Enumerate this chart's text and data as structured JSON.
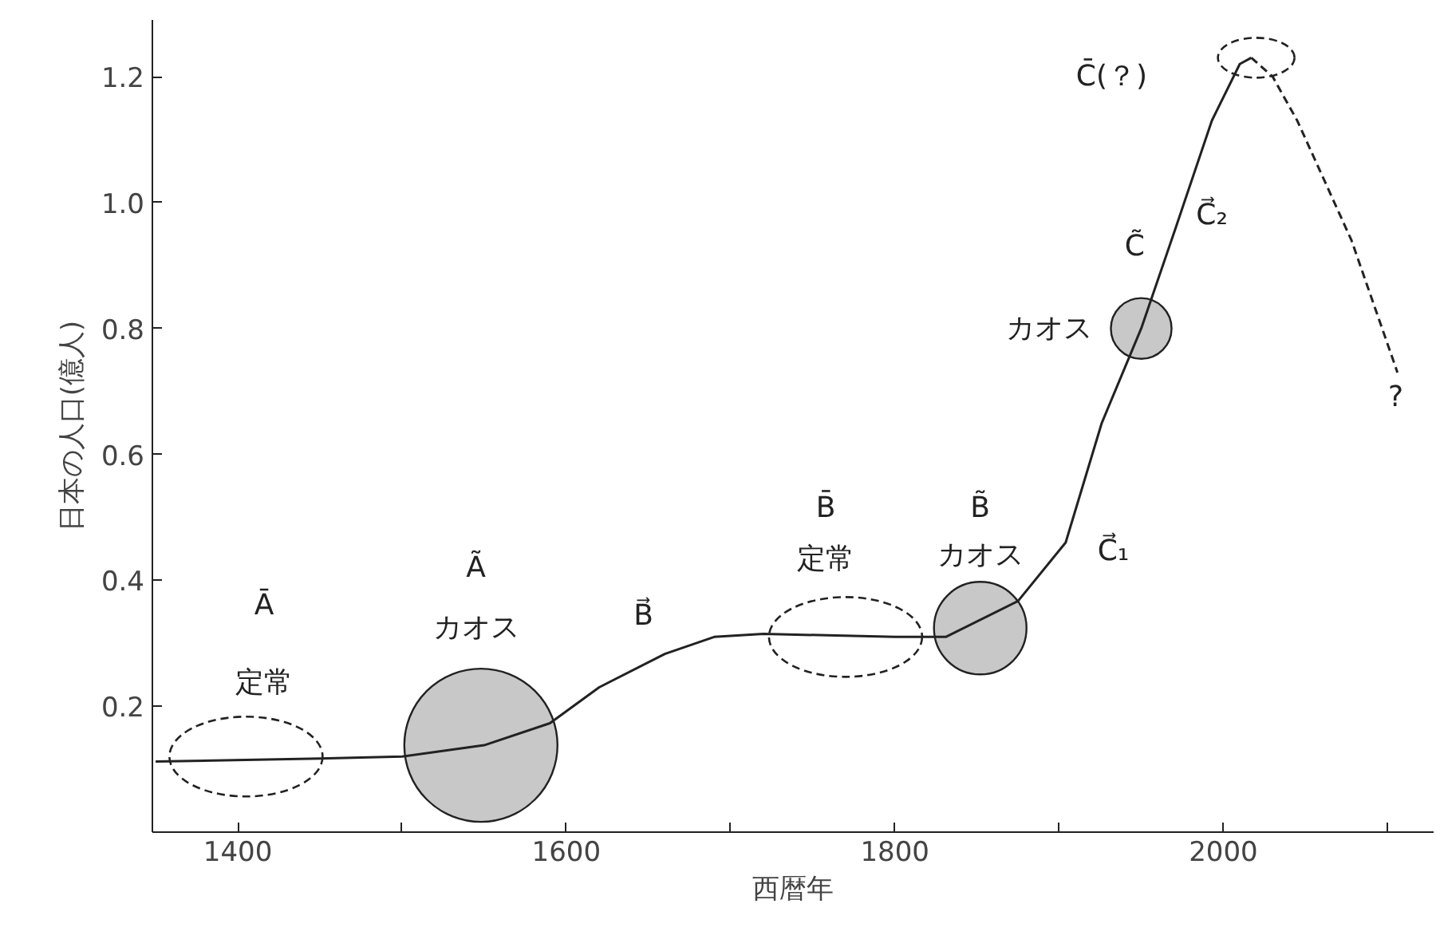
{
  "chart_data": {
    "type": "line",
    "xlabel": "西暦年",
    "ylabel": "日本の人口(億人)",
    "xlim": [
      1348,
      2128
    ],
    "ylim": [
      0,
      1.29
    ],
    "xticks": [
      1400,
      {
        "value": 1500,
        "label": null
      },
      1600,
      {
        "value": 1700,
        "label": null
      },
      1800,
      {
        "value": 1900,
        "label": null
      },
      2000,
      {
        "value": 2100,
        "label": null
      }
    ],
    "yticks": [
      0.2,
      0.4,
      0.6,
      0.8,
      {
        "value": 1.0,
        "label": "1.0"
      },
      1.2
    ],
    "grid": false,
    "series": [
      {
        "type": "bubble",
        "color": "#c8c8c8",
        "x": [
          1548,
          1852,
          1950
        ],
        "values": [
          0.138,
          0.324,
          0.8
        ],
        "sizes": [
          1,
          0.365,
          0.157
        ]
      },
      {
        "color": "#222222",
        "line_style": "solid",
        "x": [
          1350,
          1450,
          1500,
          1550,
          1590,
          1620,
          1660,
          1690,
          1720,
          1800,
          1831,
          1875,
          1904,
          1926,
          1950,
          1971,
          1993,
          2010,
          2017
        ],
        "values": [
          0.112,
          0.117,
          0.12,
          0.138,
          0.173,
          0.23,
          0.283,
          0.31,
          0.315,
          0.31,
          0.31,
          0.367,
          0.46,
          0.65,
          0.8,
          0.96,
          1.13,
          1.22,
          1.23
        ]
      },
      {
        "color": "#222222",
        "line_style": "dashed",
        "x": [
          2017,
          2030,
          2045,
          2078,
          2106
        ],
        "values": [
          1.23,
          1.2,
          1.13,
          0.94,
          0.73
        ]
      }
    ],
    "annotations": [
      "Ā",
      "定常",
      "Ã",
      "カオス",
      "B⃗",
      "B̄",
      "定常",
      "B̃",
      "カオス",
      "C⃗₁",
      "カオス",
      "C̃",
      "C⃗₂",
      "C̄(？)",
      "?"
    ]
  }
}
